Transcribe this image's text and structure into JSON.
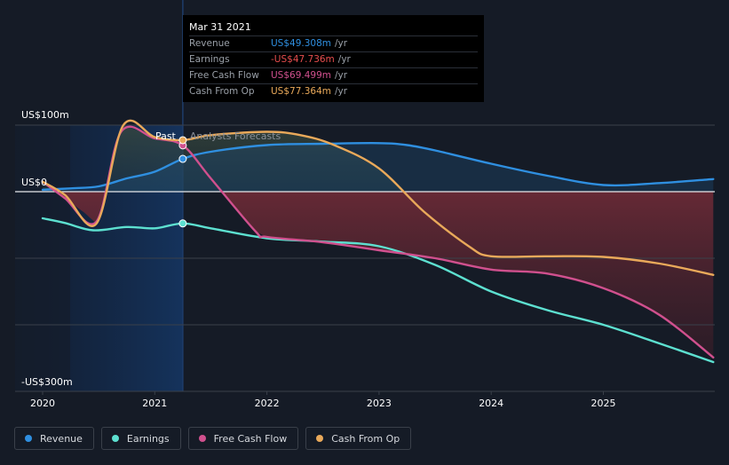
{
  "chart_data": {
    "type": "line",
    "x_unit": "year",
    "y_unit": "US$m",
    "ylim": [
      -300,
      100
    ],
    "xlim": [
      2019.75,
      2025.98
    ],
    "y_tick_labels": [
      {
        "value": 100,
        "label": "US$100m"
      },
      {
        "value": 0,
        "label": "US$0"
      },
      {
        "value": -300,
        "label": "-US$300m"
      }
    ],
    "y_gridlines": [
      100,
      0,
      -100,
      -200
    ],
    "x_ticks": [
      {
        "value": 2020,
        "label": "2020"
      },
      {
        "value": 2021,
        "label": "2021"
      },
      {
        "value": 2022,
        "label": "2022"
      },
      {
        "value": 2023,
        "label": "2023"
      },
      {
        "value": 2024,
        "label": "2024"
      },
      {
        "value": 2025,
        "label": "2025"
      }
    ],
    "divider_x": 2021.25,
    "past_label": "Past",
    "forecast_label": "Analysts Forecasts",
    "series": [
      {
        "name": "Revenue",
        "color": "#2f8fe0",
        "points": [
          [
            2020.0,
            3
          ],
          [
            2020.25,
            5
          ],
          [
            2020.5,
            8
          ],
          [
            2020.75,
            20
          ],
          [
            2021.0,
            30
          ],
          [
            2021.25,
            49.3
          ],
          [
            2021.5,
            60
          ],
          [
            2022.0,
            70
          ],
          [
            2022.5,
            72
          ],
          [
            2023.0,
            73
          ],
          [
            2023.25,
            70
          ],
          [
            2023.5,
            62
          ],
          [
            2024.0,
            42
          ],
          [
            2024.5,
            24
          ],
          [
            2025.0,
            10
          ],
          [
            2025.5,
            13
          ],
          [
            2025.98,
            19
          ]
        ]
      },
      {
        "name": "Earnings",
        "color": "#5de0d0",
        "points": [
          [
            2020.0,
            -40
          ],
          [
            2020.2,
            -47
          ],
          [
            2020.45,
            -58
          ],
          [
            2020.75,
            -53
          ],
          [
            2021.0,
            -55
          ],
          [
            2021.25,
            -47.7
          ],
          [
            2021.5,
            -55
          ],
          [
            2022.0,
            -70
          ],
          [
            2022.5,
            -75
          ],
          [
            2023.0,
            -82
          ],
          [
            2023.5,
            -110
          ],
          [
            2024.0,
            -150
          ],
          [
            2024.5,
            -178
          ],
          [
            2025.0,
            -200
          ],
          [
            2025.5,
            -228
          ],
          [
            2025.98,
            -256
          ]
        ]
      },
      {
        "name": "Free Cash Flow",
        "color": "#d0508e",
        "points": [
          [
            2020.0,
            15
          ],
          [
            2020.2,
            -10
          ],
          [
            2020.48,
            -45
          ],
          [
            2020.7,
            90
          ],
          [
            2021.0,
            80
          ],
          [
            2021.25,
            69.5
          ],
          [
            2021.5,
            20
          ],
          [
            2021.9,
            -60
          ],
          [
            2022.0,
            -68
          ],
          [
            2022.5,
            -76
          ],
          [
            2023.0,
            -88
          ],
          [
            2023.5,
            -100
          ],
          [
            2024.0,
            -117
          ],
          [
            2024.5,
            -123
          ],
          [
            2025.0,
            -145
          ],
          [
            2025.5,
            -185
          ],
          [
            2025.98,
            -249
          ]
        ]
      },
      {
        "name": "Cash From Op",
        "color": "#e9a95a",
        "points": [
          [
            2020.0,
            15
          ],
          [
            2020.2,
            -5
          ],
          [
            2020.48,
            -48
          ],
          [
            2020.72,
            100
          ],
          [
            2021.0,
            82
          ],
          [
            2021.25,
            77.4
          ],
          [
            2021.5,
            85
          ],
          [
            2022.0,
            90
          ],
          [
            2022.3,
            85
          ],
          [
            2022.6,
            70
          ],
          [
            2023.0,
            35
          ],
          [
            2023.4,
            -30
          ],
          [
            2023.8,
            -82
          ],
          [
            2024.0,
            -97
          ],
          [
            2024.5,
            -97
          ],
          [
            2025.0,
            -98
          ],
          [
            2025.5,
            -108
          ],
          [
            2025.98,
            -125
          ]
        ]
      }
    ]
  },
  "tooltip": {
    "date": "Mar 31 2021",
    "rows": [
      {
        "label": "Revenue",
        "value": "US$49.308m",
        "unit": "/yr",
        "color": "#2f8fe0"
      },
      {
        "label": "Earnings",
        "value": "-US$47.736m",
        "unit": "/yr",
        "color": "#e64d4d"
      },
      {
        "label": "Free Cash Flow",
        "value": "US$69.499m",
        "unit": "/yr",
        "color": "#d0508e"
      },
      {
        "label": "Cash From Op",
        "value": "US$77.364m",
        "unit": "/yr",
        "color": "#e9a95a"
      }
    ]
  },
  "legend": [
    {
      "label": "Revenue",
      "color": "#2f8fe0"
    },
    {
      "label": "Earnings",
      "color": "#5de0d0"
    },
    {
      "label": "Free Cash Flow",
      "color": "#d0508e"
    },
    {
      "label": "Cash From Op",
      "color": "#e9a95a"
    }
  ]
}
